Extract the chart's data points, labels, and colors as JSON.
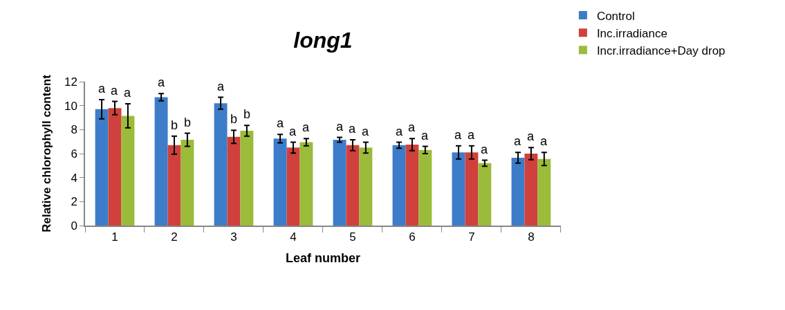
{
  "chart_data": {
    "type": "bar",
    "title": "long1",
    "xlabel": "Leaf number",
    "ylabel": "Relative chlorophyll content",
    "categories": [
      "1",
      "2",
      "3",
      "4",
      "5",
      "6",
      "7",
      "8"
    ],
    "series": [
      {
        "name": "Control",
        "color": "#3d7cc9",
        "values": [
          9.7,
          10.7,
          10.2,
          7.25,
          7.15,
          6.7,
          6.1,
          5.65
        ],
        "errors": [
          0.8,
          0.3,
          0.5,
          0.35,
          0.2,
          0.25,
          0.55,
          0.45
        ],
        "value_labels": [
          "a",
          "a",
          "a",
          "a",
          "a",
          "a",
          "a",
          "a"
        ]
      },
      {
        "name": "Inc.irradiance",
        "color": "#d0403c",
        "values": [
          9.8,
          6.7,
          7.4,
          6.5,
          6.7,
          6.75,
          6.1,
          6.0
        ],
        "errors": [
          0.55,
          0.75,
          0.55,
          0.45,
          0.45,
          0.5,
          0.55,
          0.5
        ],
        "value_labels": [
          "a",
          "b",
          "b",
          "a",
          "a",
          "a",
          "a",
          "a"
        ]
      },
      {
        "name": "Incr.irradiance+Day drop",
        "color": "#9bbb3b",
        "values": [
          9.15,
          7.15,
          7.9,
          6.95,
          6.5,
          6.3,
          5.2,
          5.55
        ],
        "errors": [
          1.0,
          0.55,
          0.45,
          0.3,
          0.45,
          0.3,
          0.25,
          0.55
        ],
        "value_labels": [
          "a",
          "b",
          "b",
          "a",
          "a",
          "a",
          "a",
          "a"
        ]
      }
    ],
    "ylim": [
      0,
      12
    ],
    "yticks": [
      0,
      2,
      4,
      6,
      8,
      10,
      12
    ],
    "legend": "top right"
  }
}
